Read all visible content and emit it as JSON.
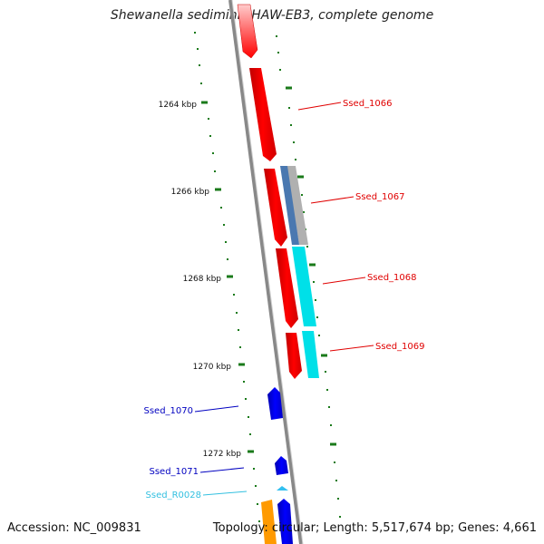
{
  "title": "Shewanella sediminis HAW-EB3, complete genome",
  "accession": "Accession: NC_009831",
  "summary": "Topology: circular; Length: 5,517,674 bp; Genes: 4,661",
  "kbp_labels": [
    "1264 kbp",
    "1266 kbp",
    "1268 kbp",
    "1270 kbp",
    "1272 kbp"
  ],
  "genes": [
    {
      "name": "Ssed_1066",
      "color": "#e00000"
    },
    {
      "name": "Ssed_1067",
      "color": "#e00000"
    },
    {
      "name": "Ssed_1068",
      "color": "#e00000"
    },
    {
      "name": "Ssed_1069",
      "color": "#e00000"
    },
    {
      "name": "Ssed_1070",
      "color": "#0000c0"
    },
    {
      "name": "Ssed_1071",
      "color": "#0000c0"
    },
    {
      "name": "Ssed_R0028",
      "color": "#33c0e0"
    }
  ],
  "colors": {
    "forward_cds": "#ff0000",
    "reverse_cds": "#0000ff",
    "gray_feature": "#b0b0b0",
    "steel_feature": "#4a78b0",
    "cyan_feature": "#00e0e8",
    "rna": "#33c0f0",
    "orange_feature": "#ff9a00",
    "ticks": "#1a7a1a",
    "backbone": "#888888"
  }
}
